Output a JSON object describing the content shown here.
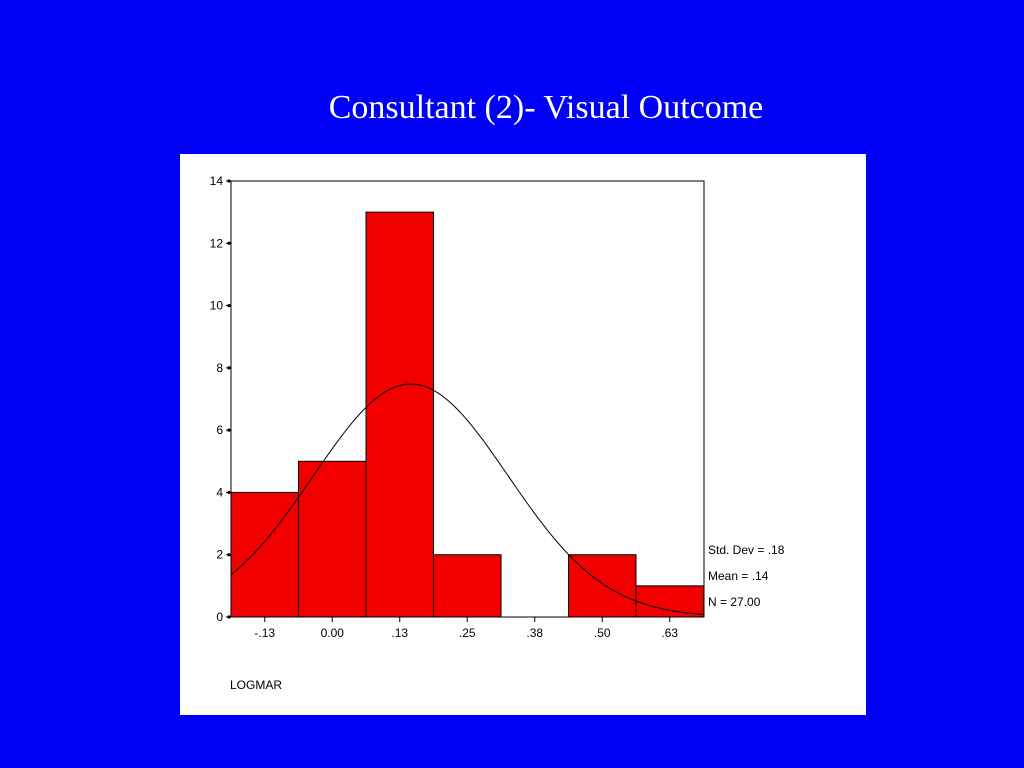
{
  "slide": {
    "title": "Consultant (2)- Visual Outcome"
  },
  "colors": {
    "background": "#0000f8",
    "panel": "#ffffff",
    "bar_fill": "#f20000",
    "bar_stroke": "#000000",
    "curve": "#000000"
  },
  "chart_data": {
    "type": "bar",
    "subtype": "histogram with normal curve",
    "title": "",
    "xlabel": "LOGMAR",
    "ylabel": "",
    "categories": [
      "-.13",
      "0.00",
      ".13",
      ".25",
      ".38",
      ".50",
      ".63"
    ],
    "values": [
      4,
      5,
      13,
      2,
      0,
      2,
      1
    ],
    "ylim": [
      0,
      14
    ],
    "yticks": [
      0,
      2,
      4,
      6,
      8,
      10,
      12,
      14
    ],
    "ytick_labels": [
      "0",
      "2",
      "4",
      "6",
      "8",
      "10",
      "12",
      "14"
    ],
    "grid": false,
    "normal_curve": {
      "mean": 0.14,
      "std_dev": 0.18,
      "n": 27,
      "bin_width": 0.125
    },
    "stats": {
      "std_dev_label": "Std. Dev = .18",
      "mean_label": "Mean = .14",
      "n_label": "N = 27.00"
    },
    "legend_position": "right"
  }
}
